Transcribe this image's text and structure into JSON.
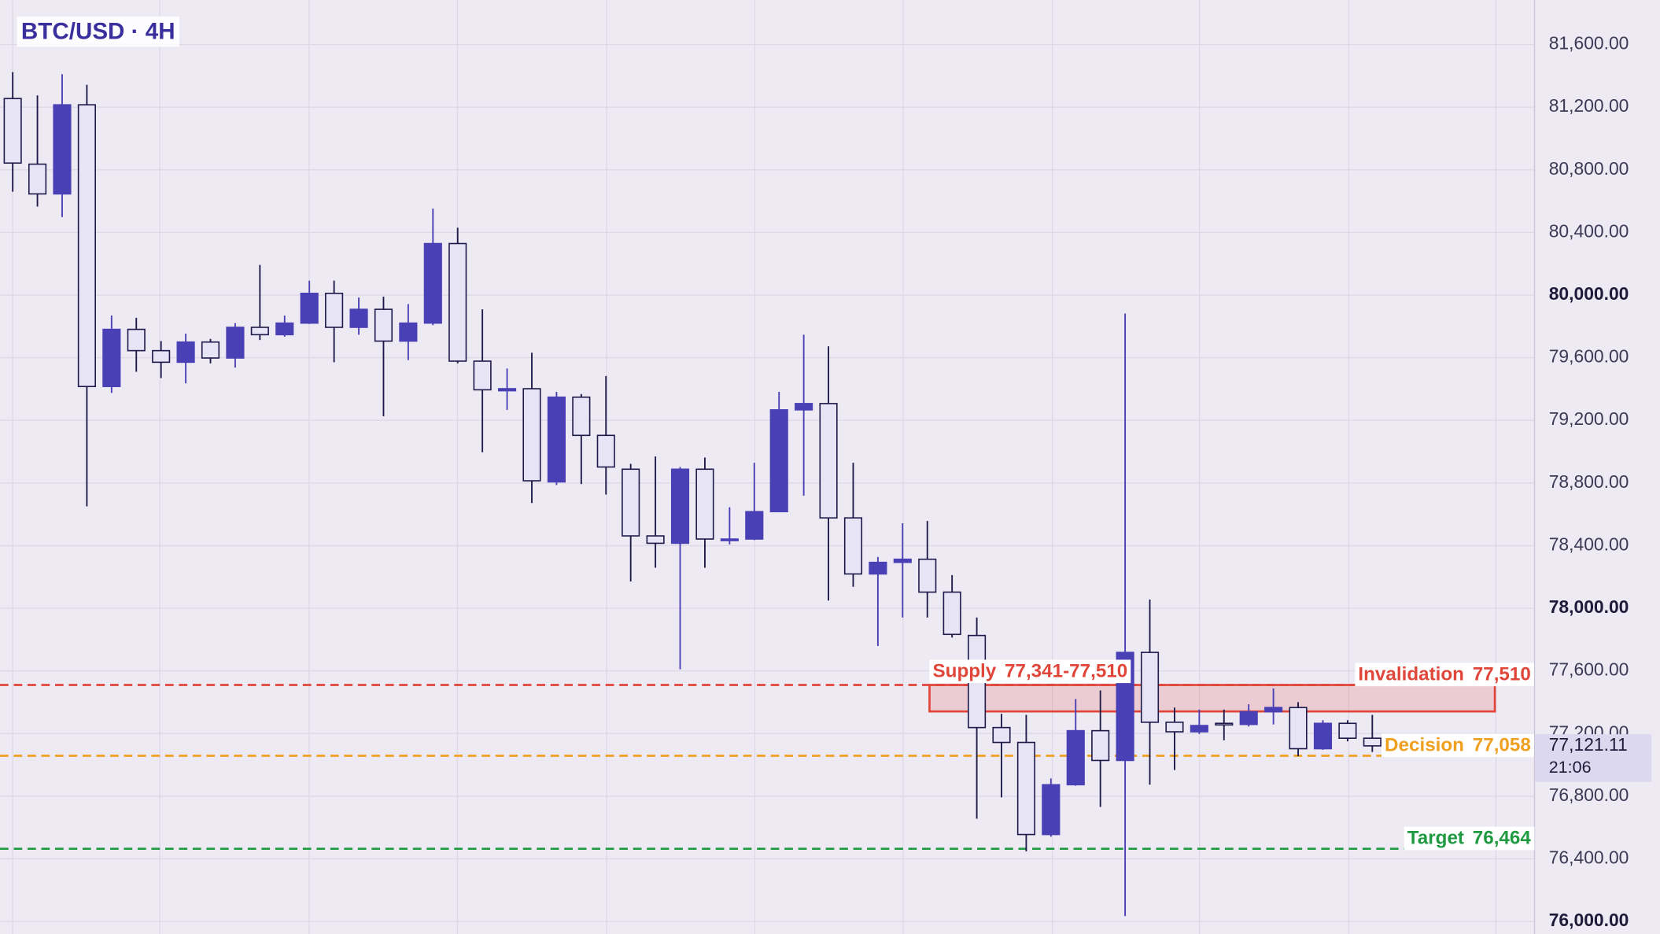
{
  "chart_data": {
    "type": "candlestick",
    "title": "BTC/USD · 4H",
    "ylim": [
      75920,
      81884
    ],
    "yticks": [
      {
        "value": 76000,
        "label": "76,000.00"
      },
      {
        "value": 76400,
        "label": "76,400.00"
      },
      {
        "value": 76800,
        "label": "76,800.00"
      },
      {
        "value": 77200,
        "label": "77,200.00"
      },
      {
        "value": 77600,
        "label": "77,600.00"
      },
      {
        "value": 78000,
        "label": "78,000.00"
      },
      {
        "value": 78400,
        "label": "78,400.00"
      },
      {
        "value": 78800,
        "label": "78,800.00"
      },
      {
        "value": 79200,
        "label": "79,200.00"
      },
      {
        "value": 79600,
        "label": "79,600.00"
      },
      {
        "value": 80000,
        "label": "80,000.00"
      },
      {
        "value": 80400,
        "label": "80,400.00"
      },
      {
        "value": 80800,
        "label": "80,800.00"
      },
      {
        "value": 81200,
        "label": "81,200.00"
      },
      {
        "value": 81600,
        "label": "81,600.00"
      }
    ],
    "grid": true,
    "up_color": "#4a40b5",
    "down_color": "#e6e4f5",
    "outline_color": "#1e1b4b",
    "open": [
      81255,
      80836,
      80646,
      81215,
      79416,
      79781,
      79645,
      79571,
      79700,
      79598,
      79794,
      79747,
      79821,
      80011,
      79794,
      79909,
      79706,
      79821,
      80329,
      79578,
      79389,
      79402,
      78807,
      79348,
      79104,
      78888,
      78462,
      78415,
      78888,
      78435,
      78442,
      78617,
      79267,
      79307,
      78577,
      78219,
      78293,
      78313,
      78103,
      77826,
      77238,
      77143,
      76555,
      76873,
      77218,
      77028,
      77718,
      77272,
      77211,
      77265,
      77258,
      77339,
      77366,
      77103,
      77265,
      77170
    ],
    "high": [
      81424,
      81275,
      81411,
      81343,
      79869,
      79855,
      79706,
      79754,
      79720,
      79821,
      80193,
      79869,
      80092,
      80092,
      79984,
      79990,
      79943,
      80552,
      80430,
      79909,
      79531,
      79632,
      79382,
      79368,
      79483,
      78922,
      78969,
      78902,
      78962,
      78645,
      78929,
      79382,
      79747,
      79673,
      78929,
      78327,
      78543,
      78557,
      78212,
      77941,
      77326,
      77319,
      76913,
      77420,
      77475,
      79882,
      78056,
      77366,
      77353,
      77353,
      77387,
      77488,
      77400,
      77285,
      77285,
      77319
    ],
    "low": [
      80660,
      80565,
      80498,
      78651,
      79375,
      79510,
      79470,
      79436,
      79564,
      79537,
      79713,
      79734,
      79815,
      79571,
      79747,
      79226,
      79585,
      79808,
      79564,
      78996,
      79267,
      78672,
      78787,
      78793,
      78726,
      78171,
      78259,
      77610,
      78259,
      78408,
      78435,
      78617,
      78719,
      78049,
      78137,
      77759,
      77941,
      77941,
      77813,
      76656,
      76792,
      76447,
      76541,
      76866,
      76731,
      76034,
      76873,
      76967,
      77197,
      77157,
      77245,
      77258,
      77055,
      77096,
      77150,
      77082
    ],
    "close": [
      80843,
      80646,
      81215,
      79416,
      79781,
      79645,
      79571,
      79700,
      79598,
      79794,
      79747,
      79821,
      80011,
      79794,
      79909,
      79706,
      79821,
      80329,
      79578,
      79395,
      79402,
      78814,
      79348,
      79104,
      78902,
      78462,
      78415,
      78888,
      78442,
      78442,
      78617,
      79267,
      79307,
      78577,
      78219,
      78293,
      78313,
      78103,
      77833,
      77238,
      77143,
      76555,
      76873,
      77218,
      77028,
      77718,
      77272,
      77211,
      77251,
      77258,
      77339,
      77366,
      77103,
      77265,
      77170,
      77121.11
    ],
    "zone": {
      "label": "Supply",
      "value_label": "77,341-77,510",
      "low": 77341,
      "high": 77510,
      "color": "#e0463a"
    },
    "levels": [
      {
        "label": "Invalidation",
        "value": 77510,
        "value_label": "77,510",
        "color": "#e0463a"
      },
      {
        "label": "Decision",
        "value": 77058,
        "value_label": "77,058",
        "color": "#f0a020"
      },
      {
        "label": "Target",
        "value": 76464,
        "value_label": "76,464",
        "color": "#1f9a40"
      }
    ],
    "last_price": {
      "value": 77121.11,
      "label": "77,121.11"
    },
    "countdown": "21:06"
  }
}
